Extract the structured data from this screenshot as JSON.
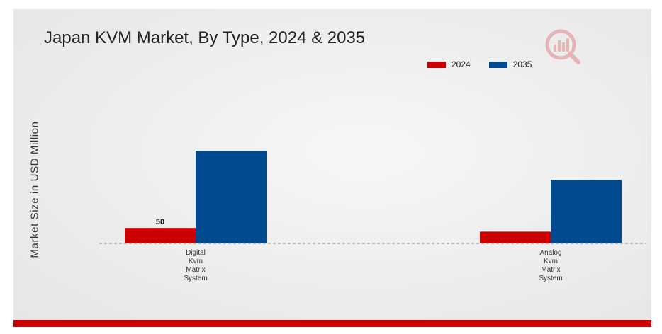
{
  "title": "Japan KVM Market, By Type, 2024 & 2035",
  "colors": {
    "series_2024": "#cc0000",
    "series_2035": "#004a8f",
    "accent_bar": "#cc0000"
  },
  "logo_icon": "market-research-logo-icon",
  "chart_data": {
    "type": "bar",
    "title": "Japan KVM Market, By Type, 2024 & 2035",
    "xlabel": "",
    "ylabel": "Market Size in USD Million",
    "ylim": [
      0,
      300
    ],
    "grid": false,
    "legend_position": "top-right",
    "categories": [
      "Digital Kvm Matrix System",
      "Analog Kvm Matrix System"
    ],
    "category_label_lines": [
      [
        "Digital",
        "Kvm",
        "Matrix",
        "System"
      ],
      [
        "Analog",
        "Kvm",
        "Matrix",
        "System"
      ]
    ],
    "series": [
      {
        "name": "2024",
        "color": "#cc0000",
        "values": [
          50,
          38
        ]
      },
      {
        "name": "2035",
        "color": "#004a8f",
        "values": [
          300,
          205
        ]
      }
    ],
    "data_labels": [
      {
        "series": 0,
        "index": 0,
        "text": "50"
      }
    ]
  }
}
